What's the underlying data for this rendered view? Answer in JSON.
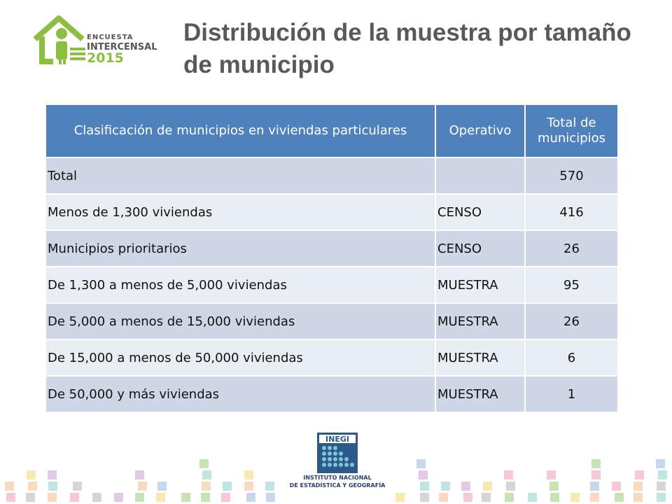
{
  "logo": {
    "line1": "ENCUESTA",
    "line2": "INTERCENSAL",
    "line3": "2015",
    "icon": "house-person-icon"
  },
  "title": "Distribución de la muestra por tamaño de municipio",
  "table": {
    "headers": [
      "Clasificación de municipios en viviendas particulares",
      "Operativo",
      "Total de municipios"
    ],
    "rows": [
      {
        "clasificacion": "Total",
        "operativo": "",
        "total": "570"
      },
      {
        "clasificacion": "Menos de 1,300 viviendas",
        "operativo": "CENSO",
        "total": "416"
      },
      {
        "clasificacion": "Municipios prioritarios",
        "operativo": "CENSO",
        "total": "26"
      },
      {
        "clasificacion": "De 1,300 a menos de 5,000 viviendas",
        "operativo": "MUESTRA",
        "total": "95"
      },
      {
        "clasificacion": "De 5,000 a menos de 15,000 viviendas",
        "operativo": "MUESTRA",
        "total": "26"
      },
      {
        "clasificacion": "De 15,000 a menos de 50,000 viviendas",
        "operativo": "MUESTRA",
        "total": "6"
      },
      {
        "clasificacion": "De 50,000 y más viviendas",
        "operativo": "MUESTRA",
        "total": "1"
      }
    ]
  },
  "footer_logo": {
    "name": "INEGI",
    "line1": "INSTITUTO NACIONAL",
    "line2": "DE ESTADÍSTICA Y GEOGRAFÍA"
  },
  "colors": {
    "header_blue": "#4f81bd",
    "row_dark": "#cfd7e6",
    "row_light": "#e9edf4",
    "logo_green": "#8cbf3f",
    "title_gray": "#595959"
  }
}
